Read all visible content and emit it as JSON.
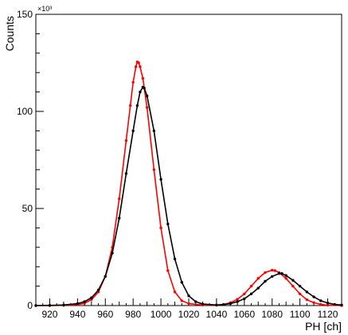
{
  "chart_data": {
    "type": "line",
    "title": "",
    "xlabel": "PH [ch]",
    "ylabel": "Counts",
    "y_exponent_label": "×10³",
    "xlim": [
      910,
      1130
    ],
    "ylim": [
      0,
      150
    ],
    "x_ticks": [
      920,
      940,
      960,
      980,
      1000,
      1020,
      1040,
      1060,
      1080,
      1100,
      1120
    ],
    "y_ticks": [
      0,
      50,
      100,
      150
    ],
    "grid": false,
    "legend": "none",
    "series": [
      {
        "color": "#ff0000",
        "points": [
          [
            910,
            0.0
          ],
          [
            920,
            0.0
          ],
          [
            930,
            0.1
          ],
          [
            940,
            0.5
          ],
          [
            945,
            1.2
          ],
          [
            950,
            3.0
          ],
          [
            955,
            7.0
          ],
          [
            960,
            15.0
          ],
          [
            965,
            30.0
          ],
          [
            970,
            55.0
          ],
          [
            975,
            85.0
          ],
          [
            978,
            103.0
          ],
          [
            980,
            115.0
          ],
          [
            982,
            123.0
          ],
          [
            983,
            125.5
          ],
          [
            984,
            125.0
          ],
          [
            985,
            123.0
          ],
          [
            987,
            117.0
          ],
          [
            990,
            102.0
          ],
          [
            995,
            70.0
          ],
          [
            1000,
            40.0
          ],
          [
            1005,
            18.0
          ],
          [
            1010,
            7.0
          ],
          [
            1015,
            2.5
          ],
          [
            1020,
            1.0
          ],
          [
            1030,
            0.3
          ],
          [
            1040,
            0.2
          ],
          [
            1045,
            0.6
          ],
          [
            1050,
            1.5
          ],
          [
            1055,
            3.2
          ],
          [
            1060,
            6.0
          ],
          [
            1065,
            10.0
          ],
          [
            1070,
            14.0
          ],
          [
            1075,
            17.0
          ],
          [
            1080,
            18.2
          ],
          [
            1082,
            18.0
          ],
          [
            1085,
            17.0
          ],
          [
            1090,
            14.0
          ],
          [
            1095,
            10.0
          ],
          [
            1100,
            6.0
          ],
          [
            1105,
            3.0
          ],
          [
            1110,
            1.5
          ],
          [
            1115,
            0.6
          ],
          [
            1120,
            0.2
          ],
          [
            1130,
            0.0
          ]
        ]
      },
      {
        "color": "#000000",
        "points": [
          [
            910,
            0.0
          ],
          [
            920,
            0.1
          ],
          [
            930,
            0.3
          ],
          [
            940,
            1.0
          ],
          [
            945,
            2.0
          ],
          [
            950,
            4.0
          ],
          [
            955,
            8.0
          ],
          [
            960,
            15.0
          ],
          [
            965,
            27.0
          ],
          [
            970,
            45.0
          ],
          [
            975,
            68.0
          ],
          [
            980,
            90.0
          ],
          [
            983,
            103.0
          ],
          [
            985,
            110.0
          ],
          [
            987,
            112.5
          ],
          [
            988,
            112.0
          ],
          [
            990,
            108.0
          ],
          [
            995,
            90.0
          ],
          [
            1000,
            65.0
          ],
          [
            1005,
            42.0
          ],
          [
            1010,
            24.0
          ],
          [
            1015,
            12.0
          ],
          [
            1020,
            5.0
          ],
          [
            1025,
            2.0
          ],
          [
            1030,
            0.8
          ],
          [
            1040,
            0.3
          ],
          [
            1045,
            0.5
          ],
          [
            1050,
            1.0
          ],
          [
            1055,
            2.0
          ],
          [
            1060,
            3.5
          ],
          [
            1065,
            6.0
          ],
          [
            1070,
            9.0
          ],
          [
            1075,
            12.5
          ],
          [
            1080,
            15.0
          ],
          [
            1085,
            16.5
          ],
          [
            1087,
            16.5
          ],
          [
            1090,
            15.5
          ],
          [
            1095,
            13.0
          ],
          [
            1100,
            10.0
          ],
          [
            1105,
            7.0
          ],
          [
            1110,
            4.5
          ],
          [
            1115,
            2.5
          ],
          [
            1120,
            1.3
          ],
          [
            1125,
            0.6
          ],
          [
            1130,
            0.3
          ]
        ]
      }
    ]
  }
}
